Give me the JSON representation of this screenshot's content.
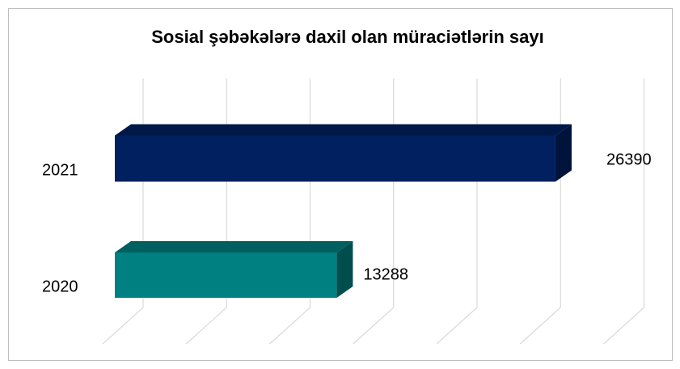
{
  "chart_data": {
    "type": "bar3d-horizontal",
    "title": "Sosial şəbəkələrə daxil olan müraciətlərin sayı",
    "categories": [
      "2020",
      "2021"
    ],
    "series": [
      {
        "values": [
          13288,
          26390
        ],
        "colors": [
          "#008080",
          "#002060"
        ]
      }
    ],
    "xlim": [
      0,
      30000
    ],
    "xticks": [
      0,
      5000,
      10000,
      15000,
      20000,
      25000,
      30000
    ],
    "grid": true
  }
}
